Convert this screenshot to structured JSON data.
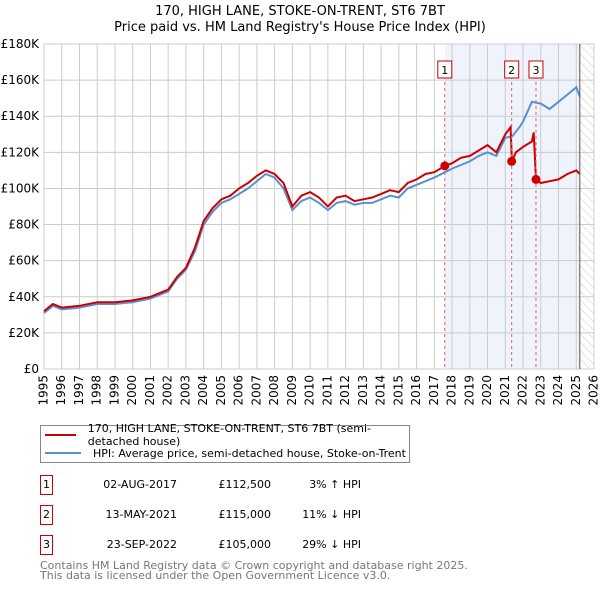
{
  "chart_data": {
    "type": "line",
    "title": "170, HIGH LANE, STOKE-ON-TRENT, ST6 7BT",
    "subtitle": "Price paid vs. HM Land Registry's House Price Index (HPI)",
    "xlim": [
      1995,
      2026
    ],
    "ylim": [
      0,
      180000
    ],
    "x_ticks": [
      "1995",
      "1996",
      "1997",
      "1998",
      "1999",
      "2000",
      "2001",
      "2002",
      "2003",
      "2004",
      "2005",
      "2006",
      "2007",
      "2008",
      "2009",
      "2010",
      "2011",
      "2012",
      "2013",
      "2014",
      "2015",
      "2016",
      "2017",
      "2018",
      "2019",
      "2020",
      "2021",
      "2022",
      "2023",
      "2024",
      "2025",
      "2026"
    ],
    "y_ticks": [
      "£0",
      "£20K",
      "£40K",
      "£60K",
      "£80K",
      "£100K",
      "£120K",
      "£140K",
      "£160K",
      "£180K"
    ],
    "grid": true,
    "shaded_range": [
      2017.6,
      2025.2
    ],
    "hatched_from": 2025.2,
    "series": [
      {
        "name": "HPI: Average price, semi-detached house, Stoke-on-Trent",
        "color": "#5b8fd0",
        "x": [
          1995,
          1995.5,
          1996,
          1997,
          1998,
          1999,
          2000,
          2001,
          2002,
          2002.5,
          2003,
          2003.5,
          2004,
          2004.5,
          2005,
          2005.5,
          2006,
          2006.5,
          2007,
          2007.5,
          2008,
          2008.5,
          2009,
          2009.5,
          2010,
          2010.5,
          2011,
          2011.5,
          2012,
          2012.5,
          2013,
          2013.5,
          2014,
          2014.5,
          2015,
          2015.5,
          2016,
          2016.5,
          2017,
          2017.6,
          2018,
          2018.5,
          2019,
          2019.5,
          2020,
          2020.5,
          2021,
          2021.4,
          2021.8,
          2022,
          2022.5,
          2023,
          2023.5,
          2024,
          2024.5,
          2025,
          2025.2
        ],
        "values": [
          31000,
          35000,
          33000,
          34000,
          36000,
          36000,
          37000,
          39000,
          43000,
          50000,
          55000,
          65000,
          80000,
          87000,
          92000,
          94000,
          97000,
          100000,
          104000,
          108000,
          106000,
          100000,
          88000,
          93000,
          95000,
          92000,
          88000,
          92000,
          93000,
          91000,
          92000,
          92000,
          94000,
          96000,
          95000,
          100000,
          102000,
          104000,
          106000,
          109000,
          111000,
          113000,
          115000,
          118000,
          120000,
          118000,
          128000,
          129000,
          134000,
          137000,
          148000,
          147000,
          144000,
          148000,
          152000,
          156000,
          151000
        ]
      },
      {
        "name": "170, HIGH LANE, STOKE-ON-TRENT, ST6 7BT (semi-detached house)",
        "color": "#cc0000",
        "x": [
          1995,
          1995.5,
          1996,
          1997,
          1998,
          1999,
          2000,
          2001,
          2002,
          2002.5,
          2003,
          2003.5,
          2004,
          2004.5,
          2005,
          2005.5,
          2006,
          2006.5,
          2007,
          2007.5,
          2008,
          2008.5,
          2009,
          2009.5,
          2010,
          2010.5,
          2011,
          2011.5,
          2012,
          2012.5,
          2013,
          2013.5,
          2014,
          2014.5,
          2015,
          2015.5,
          2016,
          2016.5,
          2017,
          2017.6,
          2018,
          2018.5,
          2019,
          2019.5,
          2020,
          2020.5,
          2021,
          2021.3,
          2021.37,
          2021.6,
          2022,
          2022.5,
          2022.6,
          2022.73,
          2023,
          2023.5,
          2024,
          2024.5,
          2025,
          2025.2
        ],
        "values": [
          32000,
          36000,
          34000,
          35000,
          37000,
          37000,
          38000,
          40000,
          44000,
          51000,
          56000,
          67000,
          82000,
          89000,
          94000,
          96000,
          100000,
          103000,
          107000,
          110000,
          108000,
          103000,
          90000,
          96000,
          98000,
          95000,
          90000,
          95000,
          96000,
          93000,
          94000,
          95000,
          97000,
          99000,
          98000,
          103000,
          105000,
          108000,
          109000,
          112500,
          114000,
          117000,
          118000,
          121000,
          124000,
          120000,
          130000,
          134000,
          115000,
          120000,
          123000,
          126000,
          131000,
          105000,
          103000,
          104000,
          105000,
          108000,
          110000,
          108000
        ]
      }
    ],
    "transactions": [
      {
        "n": "1",
        "x": 2017.59,
        "value": 112500
      },
      {
        "n": "2",
        "x": 2021.36,
        "value": 115000
      },
      {
        "n": "3",
        "x": 2022.73,
        "value": 105000
      }
    ]
  },
  "legend": {
    "property": "170, HIGH LANE, STOKE-ON-TRENT, ST6 7BT (semi-detached house)",
    "hpi": "HPI: Average price, semi-detached house, Stoke-on-Trent"
  },
  "table": [
    {
      "n": "1",
      "date": "02-AUG-2017",
      "price": "£112,500",
      "hpi": "3% ↑ HPI"
    },
    {
      "n": "2",
      "date": "13-MAY-2021",
      "price": "£115,000",
      "hpi": "11% ↓ HPI"
    },
    {
      "n": "3",
      "date": "23-SEP-2022",
      "price": "£105,000",
      "hpi": "29% ↓ HPI"
    }
  ],
  "footer": {
    "line1": "Contains HM Land Registry data © Crown copyright and database right 2025.",
    "line2": "This data is licensed under the Open Government Licence v3.0."
  }
}
